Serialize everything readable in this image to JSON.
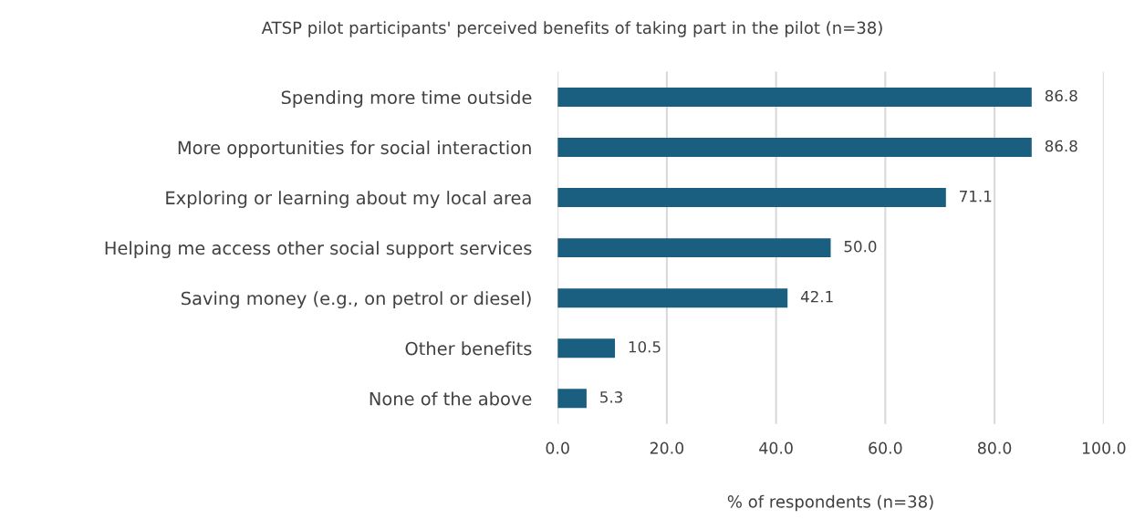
{
  "chart_data": {
    "type": "bar",
    "orientation": "horizontal",
    "title": "ATSP pilot participants' perceived benefits of taking part in the pilot (n=38)",
    "xlabel": "% of respondents (n=38)",
    "categories": [
      "Spending more time outside",
      "More opportunities for social interaction",
      "Exploring or learning about my local area",
      "Helping me access other social support services",
      "Saving money (e.g., on petrol or diesel)",
      "Other benefits",
      "None of the above"
    ],
    "values": [
      86.8,
      86.8,
      71.1,
      50.0,
      42.1,
      10.5,
      5.3
    ],
    "color": "#1a5e80",
    "xlim": [
      0,
      100
    ],
    "xticks": [
      {
        "value": 0,
        "label": "0.0"
      },
      {
        "value": 20,
        "label": "20.0"
      },
      {
        "value": 40,
        "label": "40.0"
      },
      {
        "value": 60,
        "label": "60.0"
      },
      {
        "value": 80,
        "label": "80.0"
      },
      {
        "value": 100,
        "label": "100.0"
      }
    ],
    "grid": "x",
    "value_labels": [
      "86.8",
      "86.8",
      "71.1",
      "50.0",
      "42.1",
      "10.5",
      "5.3"
    ]
  }
}
